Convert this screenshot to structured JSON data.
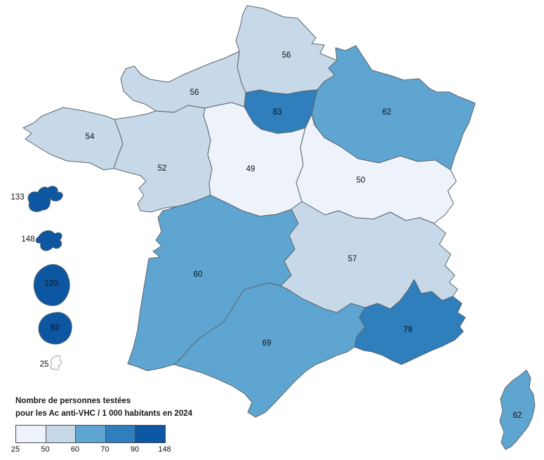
{
  "legend": {
    "title_line1": "Nombre de personnes testées",
    "title_line2": "pour les Ac anti-VHC / 1 000 habitants en 2024",
    "breaks": [
      "25",
      "50",
      "60",
      "70",
      "90",
      "148"
    ],
    "colors": [
      "#eef3fb",
      "#c7d9e8",
      "#5fa5d1",
      "#2f7fbd",
      "#0d56a2"
    ],
    "swatch_border_color": "#4d4d4d"
  },
  "map": {
    "region_border_color": "#5a666c",
    "mayotte_fill": "#fcfdff",
    "mayotte_border_color": "#9aa2aa",
    "regions": [
      {
        "id": "hauts-de-france",
        "value": 56,
        "class": 1
      },
      {
        "id": "normandie",
        "value": 56,
        "class": 1
      },
      {
        "id": "bretagne",
        "value": 54,
        "class": 1
      },
      {
        "id": "pays-de-la-loire",
        "value": 52,
        "class": 1
      },
      {
        "id": "ile-de-france",
        "value": 83,
        "class": 3
      },
      {
        "id": "grand-est",
        "value": 62,
        "class": 2
      },
      {
        "id": "centre-val-de-loire",
        "value": 49,
        "class": 0
      },
      {
        "id": "bourgogne-franche-comte",
        "value": 50,
        "class": 0
      },
      {
        "id": "nouvelle-aquitaine",
        "value": 60,
        "class": 2
      },
      {
        "id": "auvergne-rhone-alpes",
        "value": 57,
        "class": 1
      },
      {
        "id": "occitanie",
        "value": 69,
        "class": 2
      },
      {
        "id": "provence-alpes-cote-d-azur",
        "value": 79,
        "class": 3
      },
      {
        "id": "corse",
        "value": 62,
        "class": 2
      },
      {
        "id": "guadeloupe",
        "value": 133,
        "class": 4
      },
      {
        "id": "martinique",
        "value": 148,
        "class": 4
      },
      {
        "id": "guyane",
        "value": 120,
        "class": 4
      },
      {
        "id": "la-reunion",
        "value": 92,
        "class": 4
      },
      {
        "id": "mayotte",
        "value": 25,
        "class": -1
      }
    ]
  },
  "chart_data": {
    "type": "choropleth",
    "title": "Nombre de personnes testées pour les Ac anti-VHC / 1 000 habitants en 2024",
    "unit": "personnes testées pour les Ac anti-VHC / 1 000 habitants",
    "year": "2024",
    "class_breaks": [
      25,
      50,
      60,
      70,
      90,
      148
    ],
    "class_colors": [
      "#eef3fb",
      "#c7d9e8",
      "#5fa5d1",
      "#2f7fbd",
      "#0d56a2"
    ],
    "legend_position": "bottom-left",
    "values": {
      "hauts-de-france": 56,
      "normandie": 56,
      "bretagne": 54,
      "pays-de-la-loire": 52,
      "ile-de-france": 83,
      "grand-est": 62,
      "centre-val-de-loire": 49,
      "bourgogne-franche-comte": 50,
      "nouvelle-aquitaine": 60,
      "auvergne-rhone-alpes": 57,
      "occitanie": 69,
      "provence-alpes-cote-d-azur": 79,
      "corse": 62,
      "guadeloupe": 133,
      "martinique": 148,
      "guyane": 120,
      "la-reunion": 92,
      "mayotte": 25
    }
  }
}
